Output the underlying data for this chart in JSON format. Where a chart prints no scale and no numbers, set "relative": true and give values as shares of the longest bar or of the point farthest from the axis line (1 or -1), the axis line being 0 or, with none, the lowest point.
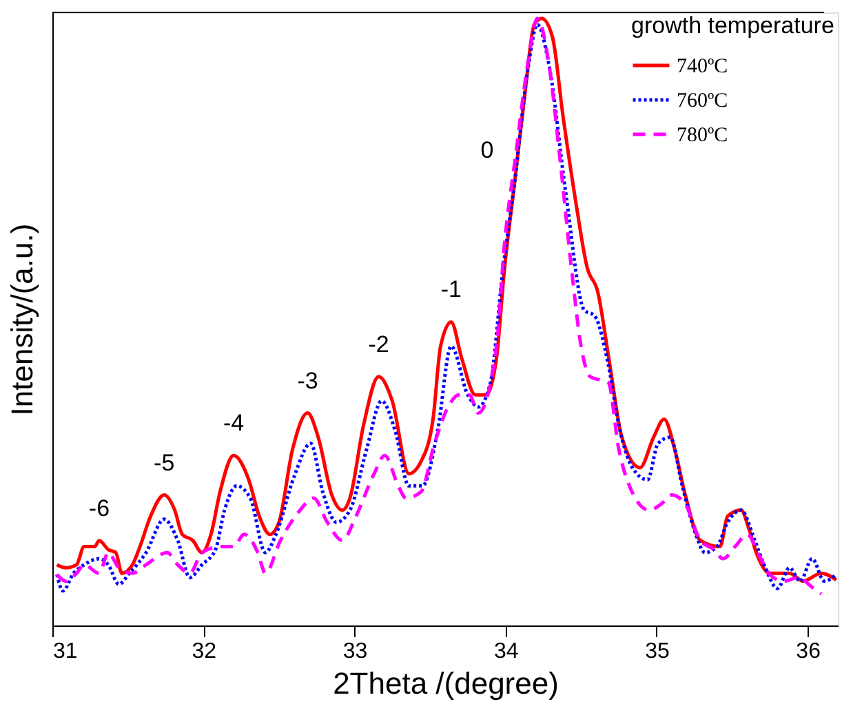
{
  "chart_data": {
    "type": "line",
    "relative": true,
    "xlabel": "2Theta /(degree)",
    "ylabel": "Intensity/(a.u.)",
    "legend_title": "growth temperature",
    "legend": "top right",
    "grid": false,
    "xlim": [
      31,
      36.2
    ],
    "xticks": [
      31,
      32,
      33,
      34,
      35,
      36
    ],
    "annotations": [
      {
        "text": "-6",
        "x": 31.31,
        "y": 0.14
      },
      {
        "text": "-5",
        "x": 31.74,
        "y": 0.215
      },
      {
        "text": "-4",
        "x": 32.2,
        "y": 0.28
      },
      {
        "text": "-3",
        "x": 32.69,
        "y": 0.35
      },
      {
        "text": "-2",
        "x": 33.16,
        "y": 0.41
      },
      {
        "text": "-1",
        "x": 33.64,
        "y": 0.5
      },
      {
        "text": "0",
        "x": 34.06,
        "y": 0.73
      }
    ],
    "series": [
      {
        "name": "740ºC",
        "color": "#ff0000",
        "line_style": "solid",
        "x": [
          31.03,
          31.09,
          31.16,
          31.21,
          31.28,
          31.31,
          31.37,
          31.42,
          31.46,
          31.53,
          31.58,
          31.65,
          31.74,
          31.81,
          31.86,
          31.93,
          31.99,
          32.05,
          32.11,
          32.2,
          32.3,
          32.37,
          32.44,
          32.5,
          32.59,
          32.69,
          32.76,
          32.85,
          32.92,
          32.97,
          33.06,
          33.16,
          33.25,
          33.36,
          33.44,
          33.52,
          33.57,
          33.64,
          33.71,
          33.8,
          33.87,
          33.94,
          33.99,
          34.06,
          34.13,
          34.19,
          34.24,
          34.31,
          34.38,
          34.47,
          34.54,
          34.61,
          34.69,
          34.77,
          34.89,
          34.98,
          35.05,
          35.12,
          35.19,
          35.29,
          35.42,
          35.47,
          35.56,
          35.61,
          35.66,
          35.75,
          35.88,
          35.97,
          36.09,
          36.19
        ],
        "values": [
          0.1,
          0.095,
          0.1,
          0.13,
          0.13,
          0.14,
          0.125,
          0.12,
          0.086,
          0.1,
          0.13,
          0.18,
          0.215,
          0.19,
          0.15,
          0.14,
          0.12,
          0.15,
          0.22,
          0.28,
          0.24,
          0.18,
          0.15,
          0.17,
          0.29,
          0.35,
          0.31,
          0.215,
          0.19,
          0.21,
          0.33,
          0.41,
          0.37,
          0.25,
          0.27,
          0.34,
          0.46,
          0.5,
          0.44,
          0.38,
          0.38,
          0.44,
          0.58,
          0.73,
          0.88,
          0.99,
          1.0,
          0.97,
          0.84,
          0.69,
          0.59,
          0.55,
          0.43,
          0.31,
          0.26,
          0.31,
          0.34,
          0.29,
          0.215,
          0.14,
          0.13,
          0.18,
          0.19,
          0.16,
          0.12,
          0.086,
          0.086,
          0.073,
          0.086,
          0.075
        ]
      },
      {
        "name": "760ºC",
        "color": "#0000ff",
        "line_style": "dotted",
        "x": [
          31.03,
          31.07,
          31.14,
          31.21,
          31.31,
          31.37,
          31.44,
          31.51,
          31.62,
          31.74,
          31.83,
          31.91,
          31.99,
          32.08,
          32.14,
          32.22,
          32.31,
          32.41,
          32.48,
          32.6,
          32.71,
          32.79,
          32.88,
          32.97,
          33.08,
          33.18,
          33.27,
          33.36,
          33.45,
          33.55,
          33.64,
          33.75,
          33.82,
          33.9,
          33.98,
          34.06,
          34.15,
          34.21,
          34.29,
          34.4,
          34.52,
          34.59,
          34.68,
          34.75,
          34.84,
          34.94,
          35.01,
          35.09,
          35.17,
          35.26,
          35.32,
          35.4,
          35.47,
          35.56,
          35.65,
          35.72,
          35.8,
          35.88,
          35.95,
          36.03,
          36.11,
          36.19
        ],
        "values": [
          0.084,
          0.057,
          0.086,
          0.1,
          0.11,
          0.1,
          0.068,
          0.086,
          0.12,
          0.175,
          0.14,
          0.079,
          0.1,
          0.125,
          0.19,
          0.23,
          0.21,
          0.12,
          0.15,
          0.245,
          0.3,
          0.22,
          0.17,
          0.19,
          0.29,
          0.37,
          0.32,
          0.23,
          0.23,
          0.32,
          0.46,
          0.38,
          0.36,
          0.4,
          0.58,
          0.73,
          0.92,
          0.99,
          0.92,
          0.71,
          0.52,
          0.51,
          0.43,
          0.33,
          0.26,
          0.24,
          0.3,
          0.31,
          0.23,
          0.15,
          0.12,
          0.13,
          0.17,
          0.19,
          0.14,
          0.095,
          0.061,
          0.095,
          0.073,
          0.11,
          0.073,
          0.084
        ]
      },
      {
        "name": "780ºC",
        "color": "#ff00ff",
        "line_style": "dashed",
        "x": [
          31.03,
          31.09,
          31.16,
          31.21,
          31.31,
          31.37,
          31.44,
          31.53,
          31.62,
          31.76,
          31.83,
          31.91,
          31.99,
          32.11,
          32.2,
          32.27,
          32.36,
          32.41,
          32.51,
          32.64,
          32.73,
          32.82,
          32.92,
          33.01,
          33.13,
          33.2,
          33.29,
          33.34,
          33.44,
          33.53,
          33.62,
          33.69,
          33.76,
          33.82,
          33.94,
          33.99,
          34.07,
          34.15,
          34.21,
          34.29,
          34.36,
          34.44,
          34.5,
          34.56,
          34.68,
          34.75,
          34.82,
          34.95,
          35.03,
          35.1,
          35.19,
          35.29,
          35.38,
          35.44,
          35.52,
          35.6,
          35.69,
          35.75,
          35.84,
          35.94,
          36.03,
          36.09
        ],
        "values": [
          0.084,
          0.073,
          0.086,
          0.1,
          0.086,
          0.12,
          0.095,
          0.086,
          0.1,
          0.12,
          0.1,
          0.086,
          0.12,
          0.13,
          0.13,
          0.15,
          0.12,
          0.086,
          0.14,
          0.19,
          0.21,
          0.17,
          0.14,
          0.18,
          0.25,
          0.28,
          0.23,
          0.21,
          0.22,
          0.3,
          0.36,
          0.38,
          0.38,
          0.35,
          0.46,
          0.62,
          0.78,
          0.93,
          1.0,
          0.92,
          0.77,
          0.58,
          0.46,
          0.41,
          0.4,
          0.29,
          0.23,
          0.19,
          0.2,
          0.215,
          0.2,
          0.14,
          0.125,
          0.11,
          0.13,
          0.15,
          0.11,
          0.084,
          0.073,
          0.079,
          0.063,
          0.052
        ]
      }
    ]
  }
}
